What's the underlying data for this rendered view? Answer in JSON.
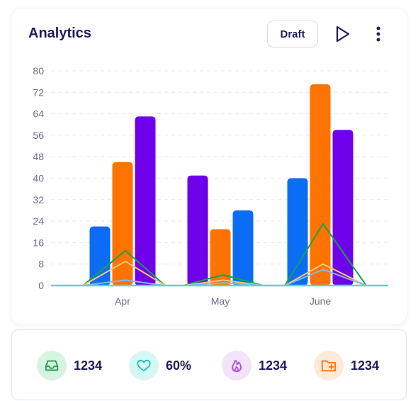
{
  "header": {
    "title": "Analytics",
    "draft_label": "Draft"
  },
  "chart_data": {
    "type": "bar",
    "categories": [
      "Apr",
      "May",
      "June"
    ],
    "ylim": [
      0,
      80
    ],
    "yticks": [
      0,
      8,
      16,
      24,
      32,
      40,
      48,
      56,
      64,
      72,
      80
    ],
    "grid": true,
    "bar_groups": [
      {
        "category": "Apr",
        "bars": [
          {
            "value": 22,
            "color": "#0b6cf5"
          },
          {
            "value": 46,
            "color": "#ff7300"
          },
          {
            "value": 63,
            "color": "#6e00ea"
          }
        ]
      },
      {
        "category": "May",
        "bars": [
          {
            "value": 41,
            "color": "#6e00ea"
          },
          {
            "value": 21,
            "color": "#ff7300"
          },
          {
            "value": 28,
            "color": "#0b6cf5"
          }
        ]
      },
      {
        "category": "June",
        "bars": [
          {
            "value": 40,
            "color": "#0b6cf5"
          },
          {
            "value": 75,
            "color": "#ff7300"
          },
          {
            "value": 58,
            "color": "#6e00ea"
          }
        ]
      }
    ],
    "line_series": [
      {
        "color": "#16a34a",
        "peaks": [
          13,
          4,
          23
        ]
      },
      {
        "color": "#f7c96b",
        "peaks": [
          9,
          2,
          8
        ]
      },
      {
        "color": "#86b8ec",
        "peaks": [
          2,
          1,
          6
        ]
      },
      {
        "color": "#5ad6c8",
        "peaks": [
          0,
          0,
          0
        ]
      }
    ]
  },
  "stats": [
    {
      "icon": "inbox-icon",
      "value": "1234",
      "color": "#16a34a",
      "bg": "#d9f3e3"
    },
    {
      "icon": "heart-icon",
      "value": "60%",
      "color": "#14c3b6",
      "bg": "#d7f7f4"
    },
    {
      "icon": "flame-icon",
      "value": "1234",
      "color": "#b44ce0",
      "bg": "#f3e3fb"
    },
    {
      "icon": "folder-plus-icon",
      "value": "1234",
      "color": "#f97316",
      "bg": "#fde9d8"
    }
  ]
}
